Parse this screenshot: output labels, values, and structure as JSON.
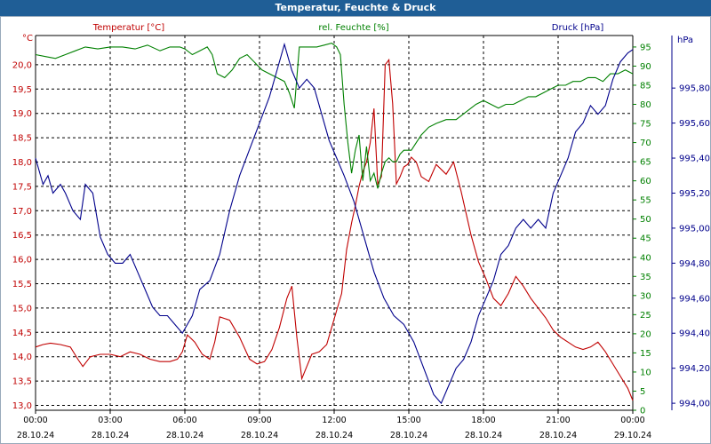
{
  "title": "Temperatur, Feuchte & Druck",
  "chart_data": {
    "type": "line",
    "title": "Temperatur, Feuchte & Druck",
    "axes": {
      "temperature": {
        "label": "Temperatur [°C]",
        "unit": "°C",
        "ylim": [
          12.9,
          20.6
        ],
        "ticks": [
          "13,0",
          "13,5",
          "14,0",
          "14,5",
          "15,0",
          "15,5",
          "16,0",
          "16,5",
          "17,0",
          "17,5",
          "18,0",
          "18,5",
          "19,0",
          "19,5",
          "20,0"
        ],
        "color": "#c00000"
      },
      "humidity": {
        "label": "rel. Feuchte [%]",
        "unit": "%",
        "ylim": [
          0,
          98
        ],
        "ticks": [
          "0",
          "5",
          "10",
          "15",
          "20",
          "25",
          "30",
          "35",
          "40",
          "45",
          "50",
          "55",
          "60",
          "65",
          "70",
          "75",
          "80",
          "85",
          "90",
          "95"
        ],
        "color": "#008000"
      },
      "pressure": {
        "label": "Druck [hPa]",
        "unit": "hPa",
        "ylim": [
          993.96,
          996.1
        ],
        "ticks": [
          "994,00",
          "994,20",
          "994,40",
          "994,60",
          "994,80",
          "995,00",
          "995,20",
          "995,40",
          "995,60",
          "995,80"
        ],
        "color": "#00008b"
      }
    },
    "x_ticks": [
      {
        "time": "00:00",
        "date": "28.10.24"
      },
      {
        "time": "03:00",
        "date": "28.10.24"
      },
      {
        "time": "06:00",
        "date": "28.10.24"
      },
      {
        "time": "09:00",
        "date": "28.10.24"
      },
      {
        "time": "12:00",
        "date": "28.10.24"
      },
      {
        "time": "15:00",
        "date": "28.10.24"
      },
      {
        "time": "18:00",
        "date": "28.10.24"
      },
      {
        "time": "21:00",
        "date": "28.10.24"
      },
      {
        "time": "00:00",
        "date": "29.10.24"
      }
    ],
    "xlim_hours": [
      0,
      24
    ],
    "grid": true,
    "series": [
      {
        "name": "Temperatur",
        "axis": "temperature",
        "color": "#c00000",
        "x": [
          0,
          0.3,
          0.6,
          1,
          1.4,
          1.7,
          1.9,
          2.2,
          2.6,
          3,
          3.4,
          3.8,
          4.2,
          4.6,
          5,
          5.4,
          5.7,
          5.9,
          6.1,
          6.4,
          6.7,
          7,
          7.2,
          7.4,
          7.8,
          8.2,
          8.6,
          8.9,
          9.2,
          9.5,
          9.8,
          10.1,
          10.3,
          10.5,
          10.7,
          10.9,
          11.1,
          11.4,
          11.7,
          11.9,
          12.1,
          12.3,
          12.5,
          12.7,
          12.85,
          13,
          13.15,
          13.3,
          13.45,
          13.6,
          13.75,
          13.9,
          14.05,
          14.2,
          14.35,
          14.5,
          14.65,
          14.8,
          14.95,
          15.1,
          15.3,
          15.5,
          15.8,
          16.1,
          16.5,
          16.8,
          17.1,
          17.5,
          17.8,
          18.1,
          18.4,
          18.7,
          19,
          19.3,
          19.6,
          19.9,
          20.2,
          20.5,
          20.8,
          21.1,
          21.4,
          21.7,
          22,
          22.3,
          22.6,
          22.9,
          23.2,
          23.5,
          23.8,
          24
        ],
        "values": [
          14.2,
          14.25,
          14.28,
          14.25,
          14.2,
          13.95,
          13.8,
          14.0,
          14.05,
          14.05,
          14.0,
          14.1,
          14.05,
          13.95,
          13.9,
          13.9,
          13.95,
          14.1,
          14.45,
          14.3,
          14.05,
          13.95,
          14.3,
          14.82,
          14.75,
          14.4,
          13.95,
          13.85,
          13.9,
          14.15,
          14.6,
          15.2,
          15.45,
          14.4,
          13.55,
          13.8,
          14.05,
          14.1,
          14.25,
          14.6,
          14.95,
          15.3,
          16.2,
          16.75,
          17.1,
          17.5,
          17.8,
          18.0,
          18.4,
          19.1,
          17.55,
          17.7,
          20.0,
          20.1,
          19.2,
          17.55,
          17.7,
          17.9,
          17.95,
          18.1,
          18.0,
          17.7,
          17.6,
          17.95,
          17.75,
          18.0,
          17.4,
          16.5,
          15.95,
          15.6,
          15.2,
          15.05,
          15.3,
          15.65,
          15.45,
          15.2,
          15.0,
          14.8,
          14.55,
          14.4,
          14.3,
          14.2,
          14.15,
          14.2,
          14.3,
          14.1,
          13.85,
          13.6,
          13.35,
          13.1
        ]
      },
      {
        "name": "rel. Feuchte",
        "axis": "humidity",
        "color": "#008000",
        "x": [
          0,
          0.4,
          0.8,
          1.2,
          1.6,
          2,
          2.5,
          3,
          3.5,
          4,
          4.5,
          5,
          5.4,
          5.8,
          6,
          6.3,
          6.6,
          6.9,
          7.1,
          7.3,
          7.6,
          7.9,
          8.2,
          8.5,
          8.8,
          9.1,
          9.4,
          9.7,
          10,
          10.2,
          10.4,
          10.6,
          10.8,
          11,
          11.3,
          11.6,
          11.9,
          12.1,
          12.25,
          12.4,
          12.55,
          12.7,
          12.85,
          13,
          13.15,
          13.3,
          13.45,
          13.6,
          13.75,
          13.9,
          14.05,
          14.2,
          14.35,
          14.5,
          14.65,
          14.8,
          14.95,
          15.1,
          15.3,
          15.5,
          15.8,
          16.1,
          16.5,
          16.9,
          17.3,
          17.7,
          18,
          18.3,
          18.6,
          18.9,
          19.2,
          19.5,
          19.8,
          20.1,
          20.4,
          20.7,
          21,
          21.3,
          21.6,
          21.9,
          22.2,
          22.5,
          22.8,
          23.1,
          23.4,
          23.7,
          24
        ],
        "values": [
          93,
          92.5,
          92,
          93,
          94,
          95,
          94.5,
          95,
          95,
          94.5,
          95.5,
          94,
          95,
          95,
          94.5,
          93,
          94,
          95,
          93,
          88,
          87,
          89,
          92,
          93,
          91,
          89,
          88,
          87,
          86,
          83,
          79,
          95,
          95,
          95,
          95,
          95.5,
          96,
          95,
          93,
          80,
          70,
          62,
          68,
          72,
          60,
          69,
          60,
          62,
          58,
          62,
          65,
          66,
          65,
          65,
          67,
          68,
          68,
          68,
          70,
          72,
          74,
          75,
          76,
          76,
          78,
          80,
          81,
          80,
          79,
          80,
          80,
          81,
          82,
          82,
          83,
          84,
          85,
          85,
          86,
          86,
          87,
          87,
          86,
          88,
          88,
          89,
          88
        ]
      },
      {
        "name": "Druck",
        "axis": "pressure",
        "color": "#00008b",
        "x": [
          0,
          0.3,
          0.5,
          0.7,
          1,
          1.2,
          1.5,
          1.8,
          2,
          2.3,
          2.6,
          2.9,
          3.2,
          3.5,
          3.8,
          4.1,
          4.4,
          4.7,
          5,
          5.3,
          5.6,
          5.9,
          6.1,
          6.3,
          6.6,
          7,
          7.4,
          7.8,
          8.2,
          8.6,
          9,
          9.4,
          9.8,
          10,
          10.3,
          10.6,
          10.9,
          11.2,
          11.5,
          11.8,
          12.1,
          12.4,
          12.8,
          13.2,
          13.6,
          14,
          14.4,
          14.8,
          15.2,
          15.6,
          16,
          16.3,
          16.6,
          16.9,
          17.2,
          17.5,
          17.8,
          18.1,
          18.4,
          18.7,
          19,
          19.3,
          19.6,
          19.9,
          20.2,
          20.5,
          20.8,
          21.1,
          21.4,
          21.7,
          22,
          22.3,
          22.6,
          22.9,
          23.2,
          23.5,
          23.8,
          24
        ],
        "values": [
          995.4,
          995.25,
          995.3,
          995.2,
          995.25,
          995.2,
          995.1,
          995.05,
          995.25,
          995.2,
          994.95,
          994.85,
          994.8,
          994.8,
          994.85,
          994.75,
          994.65,
          994.55,
          994.5,
          994.5,
          994.45,
          994.4,
          994.45,
          994.5,
          994.65,
          994.7,
          994.85,
          995.1,
          995.3,
          995.45,
          995.6,
          995.75,
          995.95,
          996.05,
          995.9,
          995.8,
          995.85,
          995.8,
          995.65,
          995.5,
          995.4,
          995.3,
          995.15,
          994.95,
          994.75,
          994.6,
          994.5,
          994.45,
          994.35,
          994.2,
          994.05,
          994.0,
          994.1,
          994.2,
          994.25,
          994.35,
          994.5,
          994.6,
          994.7,
          994.85,
          994.9,
          995.0,
          995.05,
          995.0,
          995.05,
          995.0,
          995.2,
          995.3,
          995.4,
          995.55,
          995.6,
          995.7,
          995.65,
          995.7,
          995.85,
          995.95,
          996.0,
          996.02
        ]
      }
    ]
  }
}
